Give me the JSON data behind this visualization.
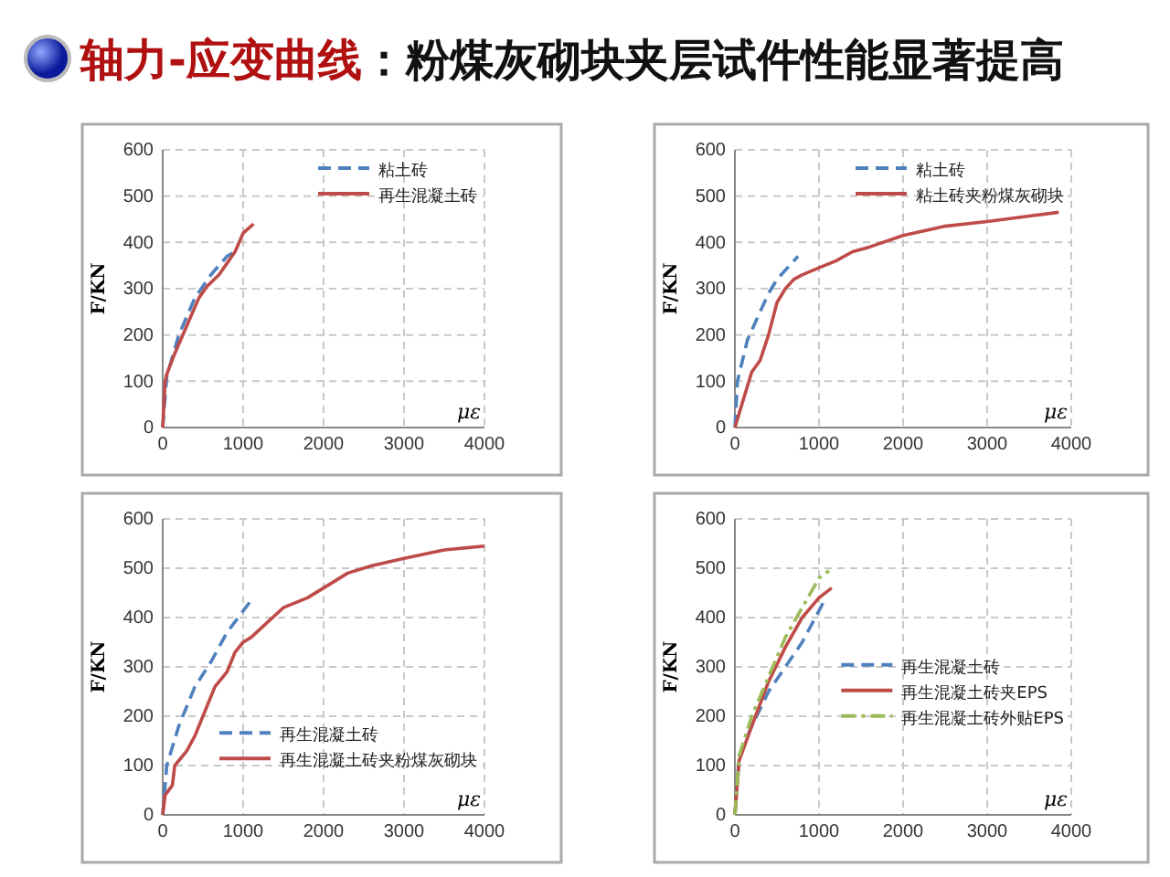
{
  "chart_data": [
    {
      "type": "other",
      "title": "轴力-应变曲线",
      "subtitle": "：粉煤灰砌块夹层试件性能显著提高"
    },
    {
      "type": "line",
      "xlabel": "με",
      "ylabel": "F/KN",
      "xlim": [
        0,
        4000
      ],
      "xticks": [
        0,
        1000,
        2000,
        3000,
        4000
      ],
      "ylim": [
        0,
        600
      ],
      "yticks": [
        0,
        100,
        200,
        300,
        400,
        500,
        600
      ],
      "grid": true,
      "legend": "top right",
      "series": [
        {
          "name": "粘土砖",
          "color": "#4f81bd",
          "line_style": "dashed",
          "x": [
            0,
            50,
            200,
            400,
            600,
            800,
            900
          ],
          "values": [
            0,
            110,
            200,
            280,
            330,
            370,
            380
          ]
        },
        {
          "name": "再生混凝土砖",
          "color": "#be4b48",
          "line_style": "solid",
          "x": [
            0,
            30,
            50,
            150,
            300,
            450,
            550,
            700,
            800,
            900,
            1000,
            1130
          ],
          "values": [
            0,
            100,
            115,
            160,
            220,
            280,
            305,
            330,
            355,
            380,
            420,
            440
          ]
        }
      ]
    },
    {
      "type": "line",
      "xlabel": "με",
      "ylabel": "F/KN",
      "xlim": [
        0,
        4000
      ],
      "xticks": [
        0,
        1000,
        2000,
        3000,
        4000
      ],
      "ylim": [
        0,
        600
      ],
      "yticks": [
        0,
        100,
        200,
        300,
        400,
        500,
        600
      ],
      "grid": true,
      "legend": "top right",
      "series": [
        {
          "name": "粘土砖",
          "color": "#4f81bd",
          "line_style": "dashed",
          "x": [
            0,
            30,
            150,
            300,
            400,
            500,
            750
          ],
          "values": [
            0,
            100,
            190,
            250,
            290,
            320,
            370
          ]
        },
        {
          "name": "粘土砖夹粉煤灰砌块",
          "color": "#be4b48",
          "line_style": "solid",
          "x": [
            0,
            100,
            200,
            300,
            400,
            500,
            600,
            700,
            800,
            1000,
            1200,
            1400,
            1600,
            2000,
            2500,
            3000,
            3500,
            3850
          ],
          "values": [
            0,
            60,
            120,
            145,
            200,
            270,
            300,
            320,
            330,
            345,
            360,
            380,
            390,
            415,
            435,
            445,
            457,
            465
          ]
        }
      ]
    },
    {
      "type": "line",
      "xlabel": "με",
      "ylabel": "F/KN",
      "xlim": [
        0,
        4000
      ],
      "xticks": [
        0,
        1000,
        2000,
        3000,
        4000
      ],
      "ylim": [
        0,
        600
      ],
      "yticks": [
        0,
        100,
        200,
        300,
        400,
        500,
        600
      ],
      "grid": true,
      "legend": "bottom right",
      "series": [
        {
          "name": "再生混凝土砖",
          "color": "#4f81bd",
          "line_style": "dashed",
          "x": [
            0,
            50,
            200,
            400,
            600,
            800,
            1100
          ],
          "values": [
            0,
            100,
            180,
            260,
            310,
            370,
            435
          ]
        },
        {
          "name": "再生混凝土砖夹粉煤灰砌块",
          "color": "#be4b48",
          "line_style": "solid",
          "x": [
            0,
            30,
            120,
            150,
            300,
            400,
            500,
            650,
            800,
            900,
            1000,
            1100,
            1300,
            1500,
            1800,
            2000,
            2300,
            2600,
            3000,
            3500,
            4000
          ],
          "values": [
            0,
            40,
            60,
            100,
            130,
            160,
            200,
            260,
            290,
            330,
            350,
            360,
            390,
            420,
            440,
            460,
            490,
            505,
            520,
            537,
            545
          ]
        }
      ]
    },
    {
      "type": "line",
      "xlabel": "με",
      "ylabel": "F/KN",
      "xlim": [
        0,
        4000
      ],
      "xticks": [
        0,
        1000,
        2000,
        3000,
        4000
      ],
      "ylim": [
        0,
        600
      ],
      "yticks": [
        0,
        100,
        200,
        300,
        400,
        500,
        600
      ],
      "grid": true,
      "legend": "right",
      "series": [
        {
          "name": "再生混凝土砖",
          "color": "#4f81bd",
          "line_style": "dashed",
          "x": [
            0,
            50,
            200,
            400,
            600,
            800,
            1050
          ],
          "values": [
            0,
            120,
            180,
            250,
            300,
            350,
            430
          ]
        },
        {
          "name": "再生混凝土砖夹EPS",
          "color": "#be4b48",
          "line_style": "solid",
          "x": [
            0,
            50,
            200,
            400,
            600,
            800,
            1000,
            1150
          ],
          "values": [
            0,
            110,
            180,
            270,
            340,
            400,
            440,
            460
          ]
        },
        {
          "name": "再生混凝土砖外贴EPS",
          "color": "#9bbb59",
          "line_style": "dashdot",
          "x": [
            0,
            50,
            200,
            400,
            600,
            800,
            1000,
            1120
          ],
          "values": [
            0,
            120,
            200,
            280,
            360,
            420,
            480,
            495
          ]
        }
      ]
    }
  ]
}
